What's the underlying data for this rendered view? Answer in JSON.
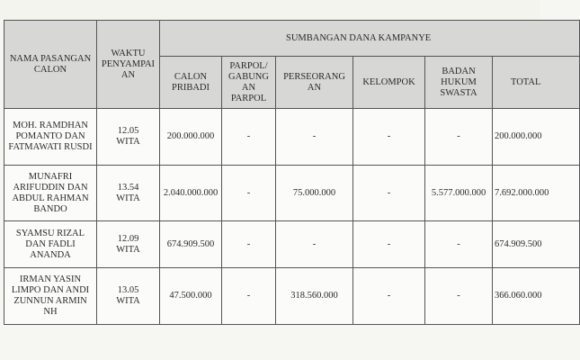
{
  "table": {
    "headers": {
      "name": "NAMA PASANGAN CALON",
      "time": "WAKTU PENYAMPAI AN",
      "group": "SUMBANGAN DANA KAMPANYE",
      "sub": [
        "CALON PRIBADI",
        "PARPOL/ GABUNG AN PARPOL",
        "PERSEORANG AN",
        "KELOMPOK",
        "BADAN HUKUM SWASTA",
        "TOTAL"
      ]
    },
    "rows": [
      {
        "name": "MOH. RAMDHAN POMANTO DAN FATMAWATI RUSDI",
        "time": "12.05 WITA",
        "values": [
          "200.000.000",
          "-",
          "-",
          "-",
          "-",
          "200.000.000"
        ]
      },
      {
        "name": "MUNAFRI ARIFUDDIN DAN ABDUL RAHMAN BANDO",
        "time": "13.54 WITA",
        "values": [
          "2.040.000.000",
          "-",
          "75.000.000",
          "-",
          "5.577.000.000",
          "7.692.000.000"
        ]
      },
      {
        "name": "SYAMSU RIZAL DAN FADLI ANANDA",
        "time": "12.09 WITA",
        "values": [
          "674.909.500",
          "-",
          "-",
          "-",
          "-",
          "674.909.500"
        ]
      },
      {
        "name": "IRMAN YASIN LIMPO DAN ANDI ZUNNUN ARMIN NH",
        "time": "13.05 WITA",
        "values": [
          "47.500.000",
          "-",
          "318.560.000",
          "-",
          "-",
          "366.060.000"
        ]
      }
    ]
  }
}
